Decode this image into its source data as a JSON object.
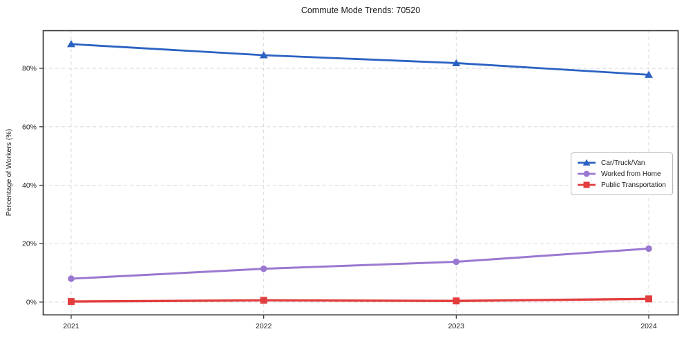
{
  "chart_data": {
    "type": "line",
    "title": "Commute Mode Trends: 70520",
    "xlabel": "",
    "ylabel": "Percentage of Workers (%)",
    "categories": [
      "2021",
      "2022",
      "2023",
      "2024"
    ],
    "y_ticks": [
      0,
      20,
      40,
      60,
      80
    ],
    "y_tick_suffix": "%",
    "ylim": [
      -4.5,
      93
    ],
    "grid": true,
    "grid_style": "dashed",
    "legend_position": "middle-right",
    "series": [
      {
        "name": "Car/Truck/Van",
        "marker": "triangle",
        "color": "#2b62c2",
        "values": [
          88.3,
          84.5,
          81.8,
          77.8
        ]
      },
      {
        "name": "Worked from Home",
        "marker": "circle",
        "color": "#9a78d1",
        "values": [
          8.0,
          11.4,
          13.8,
          18.3
        ]
      },
      {
        "name": "Public Transportation",
        "marker": "square",
        "color": "#e23e3e",
        "values": [
          0.2,
          0.6,
          0.4,
          1.1
        ]
      }
    ]
  },
  "colors": {
    "background": "#ffffff",
    "grid": "#d9d9d9",
    "spine": "#2e2e2e",
    "tick_text": "#1c1c1c",
    "legend_border": "#b9b9b9"
  }
}
